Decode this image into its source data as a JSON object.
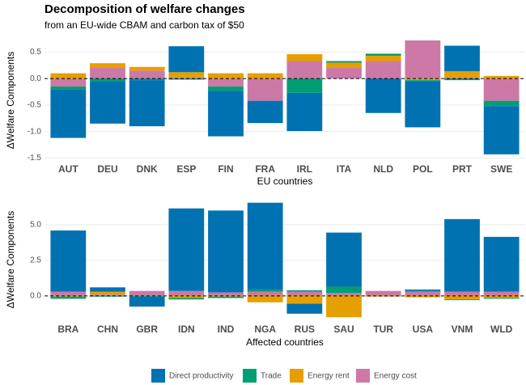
{
  "chart_data": [
    {
      "type": "bar",
      "stacked": true,
      "title": "Decomposition of welfare changes",
      "subtitle": "from an EU-wide CBAM and carbon tax of $50",
      "xlabel": "EU countries",
      "ylabel": "ΔWelfare Components",
      "categories": [
        "AUT",
        "DEU",
        "DNK",
        "ESP",
        "FIN",
        "FRA",
        "IRL",
        "ITA",
        "NLD",
        "POL",
        "PRT",
        "SWE"
      ],
      "series": [
        {
          "name": "Direct productivity",
          "color": "#0072B2",
          "values": [
            -0.92,
            -0.8,
            -0.87,
            0.49,
            -0.86,
            -0.42,
            -0.72,
            0.01,
            -0.65,
            -0.87,
            0.48,
            -0.91
          ]
        },
        {
          "name": "Trade",
          "color": "#009E73",
          "values": [
            -0.05,
            -0.05,
            -0.03,
            -0.02,
            -0.08,
            0.0,
            -0.27,
            0.02,
            0.04,
            -0.02,
            -0.03,
            -0.1
          ]
        },
        {
          "name": "Energy rent",
          "color": "#E69F00",
          "values": [
            0.1,
            0.09,
            0.07,
            0.1,
            0.1,
            0.1,
            0.13,
            0.1,
            0.1,
            -0.03,
            0.12,
            0.05
          ]
        },
        {
          "name": "Energy cost",
          "color": "#CC79A7",
          "values": [
            -0.15,
            0.2,
            0.15,
            0.02,
            -0.15,
            -0.42,
            0.33,
            0.2,
            0.33,
            0.72,
            0.02,
            -0.42
          ]
        }
      ],
      "ylim": [
        -1.57,
        0.75
      ],
      "yticks": [
        0.5,
        {
          "value": 0,
          "label": "0.0"
        },
        -0.5,
        {
          "value": -1,
          "label": "-1.0"
        },
        {
          "value": -1.5,
          "label": "-1.5"
        }
      ],
      "grid": true,
      "zero_line": "dashed"
    },
    {
      "type": "bar",
      "stacked": true,
      "xlabel": "Affected countries",
      "ylabel": "ΔWelfare Components",
      "categories": [
        "BRA",
        "CHN",
        "GBR",
        "IDN",
        "IND",
        "NGA",
        "RUS",
        "SAU",
        "TUR",
        "USA",
        "VNM",
        "WLD"
      ],
      "series": [
        {
          "name": "Direct productivity",
          "color": "#0072B2",
          "values": [
            4.3,
            0.3,
            -0.7,
            5.8,
            5.75,
            6.1,
            -0.7,
            3.8,
            0.0,
            0.1,
            5.1,
            3.85
          ]
        },
        {
          "name": "Trade",
          "color": "#009E73",
          "values": [
            -0.15,
            -0.05,
            -0.05,
            -0.1,
            -0.1,
            0.15,
            0.1,
            0.45,
            0.0,
            0.05,
            -0.05,
            -0.05
          ]
        },
        {
          "name": "Energy rent",
          "color": "#E69F00",
          "values": [
            -0.05,
            0.2,
            0.0,
            -0.15,
            -0.05,
            -0.45,
            -0.55,
            -1.5,
            -0.05,
            -0.1,
            -0.25,
            -0.15
          ]
        },
        {
          "name": "Energy cost",
          "color": "#CC79A7",
          "values": [
            0.3,
            0.1,
            0.35,
            0.35,
            0.25,
            0.3,
            0.3,
            0.2,
            0.35,
            0.3,
            0.3,
            0.3
          ]
        }
      ],
      "ylim": [
        -1.6,
        6.7
      ],
      "yticks": [
        {
          "value": 0,
          "label": "0.0"
        },
        2.5,
        {
          "value": 5,
          "label": "5.0"
        }
      ],
      "grid": true,
      "zero_line": "dashed",
      "legend": "bottom"
    }
  ]
}
